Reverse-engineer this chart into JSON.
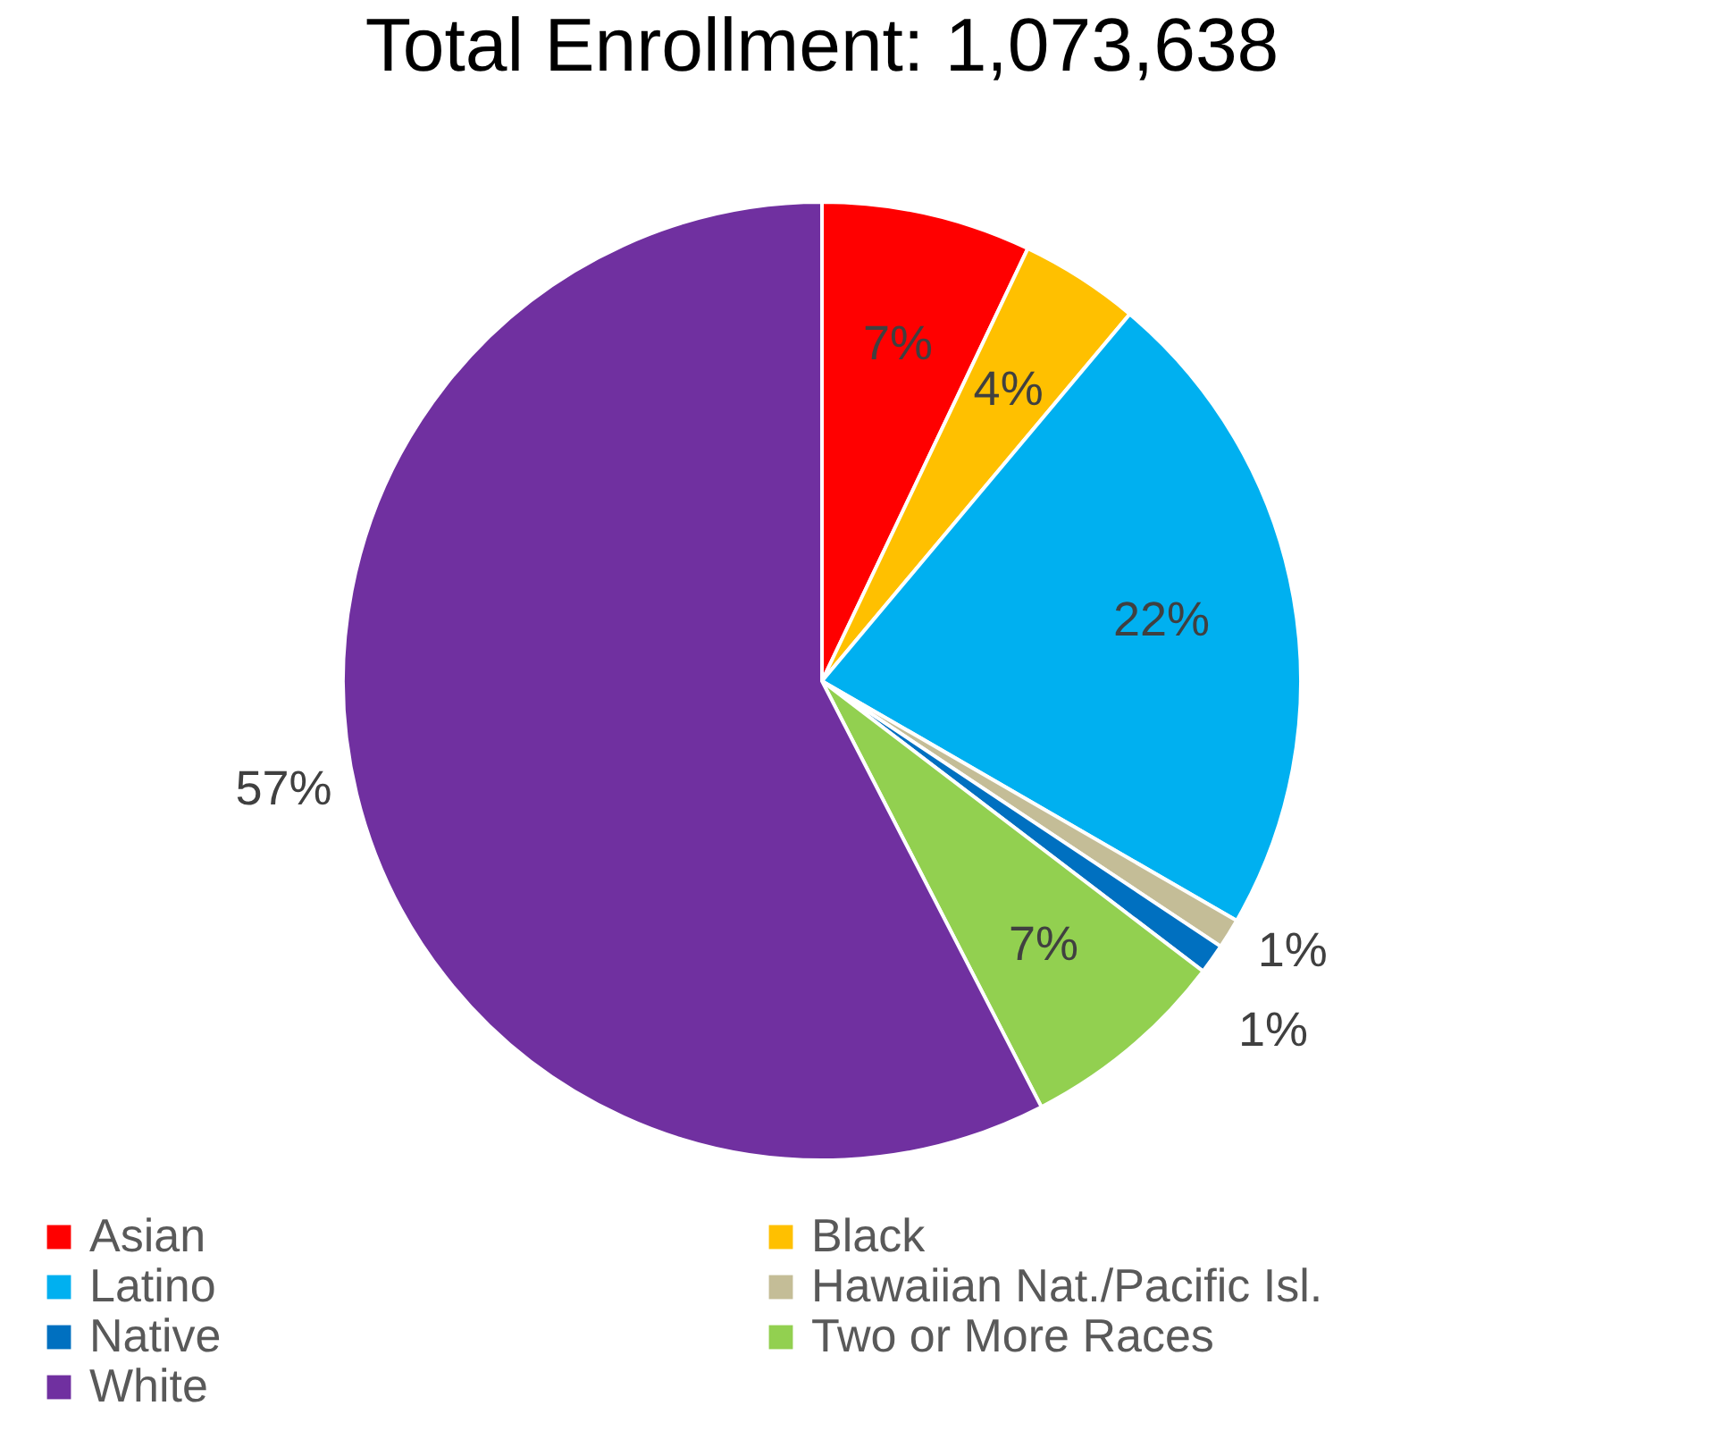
{
  "chart_data": {
    "type": "pie",
    "title": "Total Enrollment: 1,073,638",
    "categories": [
      "Asian",
      "Black",
      "Latino",
      "Hawaiian Nat./Pacific Isl.",
      "Native",
      "Two or More Races",
      "White"
    ],
    "values": [
      7,
      4,
      22,
      1,
      1,
      7,
      57
    ],
    "colors": [
      "#ff0000",
      "#ffc000",
      "#00b0f0",
      "#c4bd97",
      "#0070c0",
      "#92d050",
      "#7030a0"
    ],
    "value_labels": [
      "7%",
      "4%",
      "22%",
      "1%",
      "1%",
      "7%",
      "57%"
    ],
    "legend": "bottom"
  }
}
